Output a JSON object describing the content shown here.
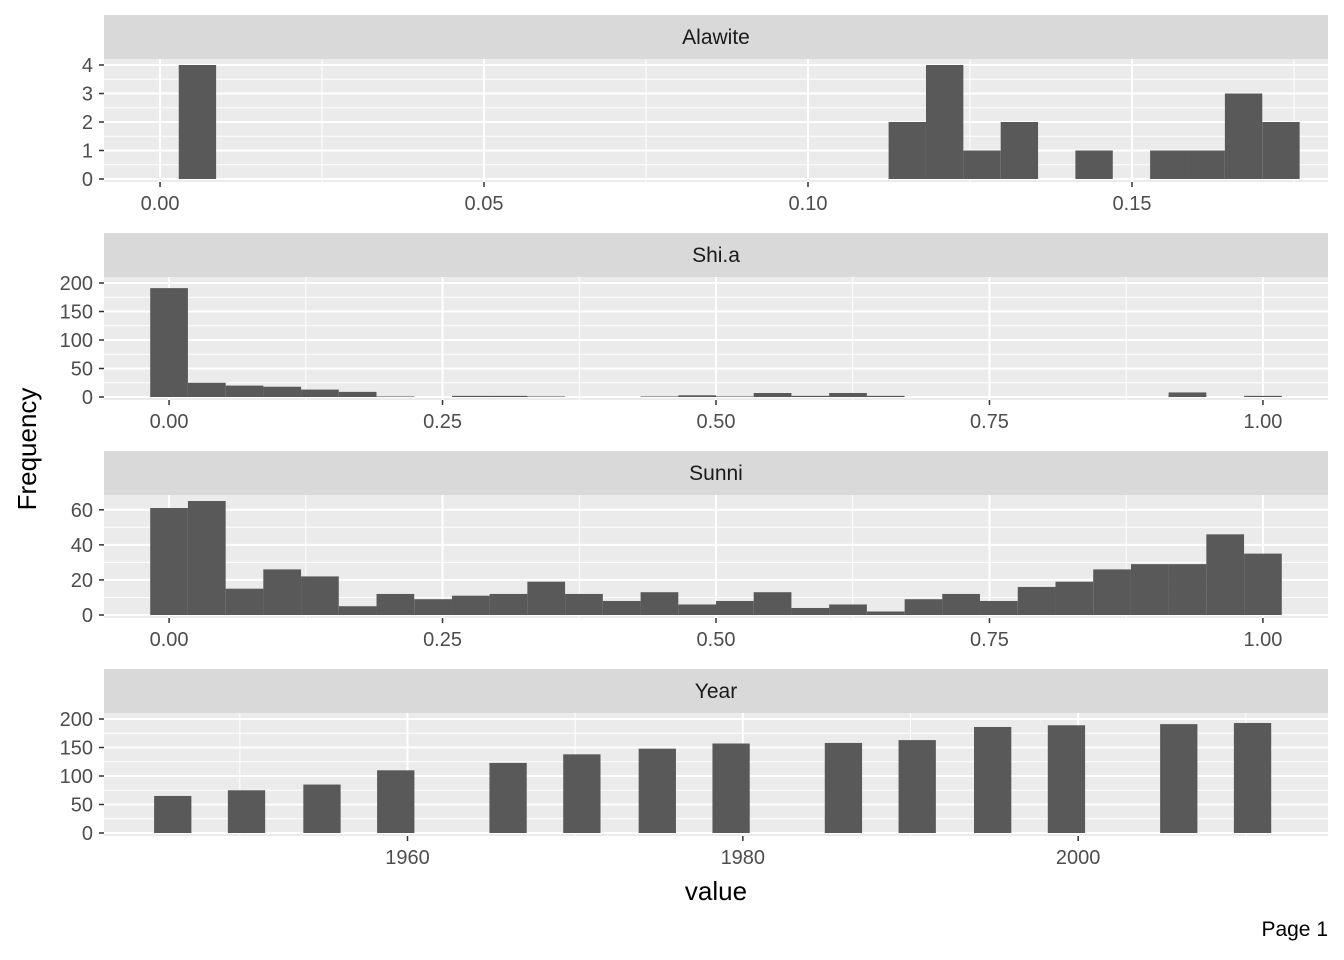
{
  "page_label": "Page 1",
  "chart_data": {
    "type": "histogram-facets",
    "xlabel": "value",
    "ylabel": "Frequency",
    "colors": {
      "bar": "#595959",
      "panel": "#ebebeb",
      "strip": "#d9d9d9",
      "grid": "#ffffff"
    },
    "facets": [
      {
        "title": "Alawite",
        "binwidth": 0.005766,
        "x_range": [
          -0.00865,
          0.18025
        ],
        "y_range": [
          0,
          4
        ],
        "x_ticks": [
          0.0,
          0.05,
          0.1,
          0.15
        ],
        "x_tick_labels": [
          "0.00",
          "0.05",
          "0.10",
          "0.15"
        ],
        "y_ticks": [
          0,
          1,
          2,
          3,
          4
        ],
        "bin_centers": [
          0.00577,
          0.11532,
          0.12109,
          0.12685,
          0.13262,
          0.14415,
          0.15568,
          0.16145,
          0.16722,
          0.17299
        ],
        "counts": [
          4,
          2,
          4,
          1,
          2,
          1,
          1,
          1,
          3,
          2
        ]
      },
      {
        "title": "Shi.a",
        "binwidth": 0.03448,
        "x_range": [
          -0.05948,
          1.05948
        ],
        "y_range": [
          0,
          200
        ],
        "x_ticks": [
          0.0,
          0.25,
          0.5,
          0.75,
          1.0
        ],
        "x_tick_labels": [
          "0.00",
          "0.25",
          "0.50",
          "0.75",
          "1.00"
        ],
        "y_ticks": [
          0,
          50,
          100,
          150,
          200
        ],
        "bin_centers": [
          0.0,
          0.0345,
          0.069,
          0.1034,
          0.1379,
          0.1724,
          0.2069,
          0.2759,
          0.3103,
          0.3448,
          0.4483,
          0.4828,
          0.5172,
          0.5517,
          0.5862,
          0.6207,
          0.6552,
          0.931,
          1.0
        ],
        "counts": [
          191,
          25,
          20,
          18,
          13,
          9,
          1,
          2,
          2,
          1,
          1,
          3,
          1,
          7,
          2,
          7,
          2,
          8,
          2
        ]
      },
      {
        "title": "Sunni",
        "binwidth": 0.03448,
        "x_range": [
          -0.05948,
          1.05948
        ],
        "y_range": [
          0,
          65
        ],
        "x_ticks": [
          0.0,
          0.25,
          0.5,
          0.75,
          1.0
        ],
        "x_tick_labels": [
          "0.00",
          "0.25",
          "0.50",
          "0.75",
          "1.00"
        ],
        "y_ticks": [
          0,
          20,
          40,
          60
        ],
        "bin_centers": [
          0.0,
          0.0345,
          0.069,
          0.1034,
          0.1379,
          0.1724,
          0.2069,
          0.2414,
          0.2759,
          0.3103,
          0.3448,
          0.3793,
          0.4138,
          0.4483,
          0.4828,
          0.5172,
          0.5517,
          0.5862,
          0.6207,
          0.6552,
          0.6897,
          0.7241,
          0.7586,
          0.7931,
          0.8276,
          0.8621,
          0.8966,
          0.931,
          0.9655,
          1.0
        ],
        "counts": [
          61,
          65,
          15,
          26,
          22,
          5,
          12,
          9,
          11,
          12,
          19,
          12,
          8,
          13,
          6,
          8,
          13,
          4,
          6,
          2,
          9,
          12,
          8,
          16,
          19,
          26,
          29,
          29,
          46,
          35
        ]
      },
      {
        "title": "Year",
        "binwidth": 2.2241,
        "x_range": [
          1941.9,
          2014.9
        ],
        "y_range": [
          0,
          200
        ],
        "x_ticks": [
          1960,
          1980,
          2000
        ],
        "x_tick_labels": [
          "1960",
          "1980",
          "2000"
        ],
        "y_ticks": [
          0,
          50,
          100,
          150,
          200
        ],
        "bin_centers": [
          1946.0,
          1950.4,
          1954.9,
          1959.3,
          1966.0,
          1970.4,
          1974.9,
          1979.3,
          1986.0,
          1990.4,
          1994.9,
          1999.3,
          2006.0,
          2010.4
        ],
        "counts": [
          65,
          75,
          85,
          110,
          123,
          138,
          148,
          157,
          158,
          163,
          186,
          189,
          191,
          193
        ]
      }
    ]
  }
}
